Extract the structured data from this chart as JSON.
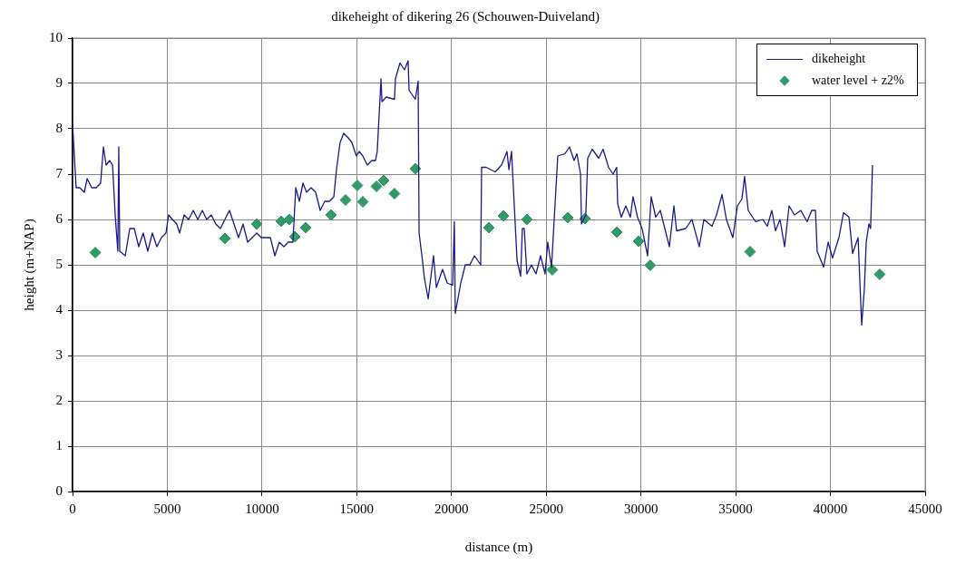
{
  "chart_data": {
    "type": "line",
    "title": "dikeheight of dikering 26 (Schouwen-Duiveland)",
    "xlabel": "distance (m)",
    "ylabel": "height (m+NAP)",
    "xlim": [
      0,
      45000
    ],
    "xticks": [
      0,
      5000,
      10000,
      15000,
      20000,
      25000,
      30000,
      35000,
      40000,
      45000
    ],
    "ylim": [
      0,
      10
    ],
    "yticks": [
      0,
      1,
      2,
      3,
      4,
      5,
      6,
      7,
      8,
      9,
      10
    ],
    "grid": true,
    "legend": "top right",
    "series": [
      {
        "name": "dikeheight",
        "type": "line",
        "color": "#1a1a8c",
        "marker": "none",
        "line_style": "solid",
        "x": [
          0,
          190,
          380,
          620,
          770,
          1010,
          1250,
          1480,
          1630,
          1770,
          1960,
          2110,
          2250,
          2390,
          2440,
          2490,
          2780,
          3020,
          3260,
          3490,
          3730,
          3970,
          4210,
          4450,
          4690,
          4930,
          5070,
          5270,
          5500,
          5650,
          5890,
          6130,
          6370,
          6610,
          6850,
          7080,
          7320,
          7560,
          7800,
          8040,
          8280,
          8520,
          8760,
          9000,
          9240,
          9480,
          9720,
          9960,
          10440,
          10680,
          10910,
          11150,
          11390,
          11630,
          11780,
          11970,
          12160,
          12350,
          12590,
          12830,
          13070,
          13310,
          13550,
          13790,
          13930,
          14120,
          14310,
          14550,
          14740,
          14980,
          15130,
          15320,
          15560,
          15800,
          15990,
          16080,
          16280,
          16330,
          16560,
          16990,
          17040,
          17280,
          17520,
          17710,
          17760,
          18090,
          18240,
          18290,
          18480,
          18570,
          18770,
          19050,
          19200,
          19530,
          19770,
          20060,
          20150,
          20200,
          20490,
          20730,
          20970,
          21210,
          21540,
          21590,
          21830,
          22310,
          22640,
          22930,
          23030,
          23170,
          23460,
          23650,
          23740,
          23840,
          23980,
          24220,
          24460,
          24700,
          24940,
          25080,
          25280,
          25610,
          25990,
          26230,
          26470,
          26620,
          26810,
          26860,
          27090,
          27190,
          27430,
          27770,
          28000,
          28290,
          28530,
          28720,
          28770,
          28960,
          29200,
          29440,
          29580,
          29820,
          30060,
          30350,
          30540,
          30780,
          31020,
          31260,
          31500,
          31740,
          31880,
          32360,
          32690,
          33080,
          33320,
          33750,
          33990,
          34280,
          34510,
          34850,
          35090,
          35330,
          35470,
          35660,
          36050,
          36430,
          36670,
          36910,
          37100,
          37340,
          37580,
          37820,
          38100,
          38440,
          38770,
          39010,
          39210,
          39300,
          39640,
          39880,
          40110,
          40450,
          40690,
          40980,
          41170,
          41460,
          41650,
          41790,
          41890,
          42030,
          42120,
          42220
        ],
        "values": [
          8.1,
          6.7,
          6.7,
          6.6,
          6.9,
          6.7,
          6.7,
          6.8,
          7.6,
          7.2,
          7.3,
          7.2,
          6.1,
          5.3,
          7.6,
          5.3,
          5.2,
          5.8,
          5.8,
          5.4,
          5.7,
          5.3,
          5.7,
          5.4,
          5.6,
          5.7,
          6.1,
          6.0,
          5.9,
          5.7,
          6.1,
          6.0,
          6.2,
          6.0,
          6.2,
          6.0,
          6.1,
          5.9,
          5.8,
          6.0,
          6.2,
          5.9,
          5.6,
          5.9,
          5.5,
          5.6,
          5.7,
          5.6,
          5.6,
          5.2,
          5.5,
          5.4,
          5.5,
          5.5,
          6.7,
          6.4,
          6.8,
          6.6,
          6.7,
          6.6,
          6.2,
          6.4,
          6.4,
          6.5,
          7.1,
          7.7,
          7.9,
          7.8,
          7.7,
          7.4,
          7.5,
          7.4,
          7.2,
          7.3,
          7.3,
          7.5,
          9.1,
          8.6,
          8.7,
          8.65,
          9.1,
          9.45,
          9.3,
          9.5,
          8.85,
          8.65,
          9.05,
          5.7,
          5.05,
          4.7,
          4.25,
          5.2,
          4.5,
          4.9,
          4.6,
          4.55,
          5.95,
          3.93,
          4.6,
          5.0,
          5.0,
          5.2,
          5.0,
          7.15,
          7.15,
          7.05,
          7.2,
          7.5,
          7.1,
          7.5,
          5.1,
          4.75,
          5.8,
          5.8,
          4.8,
          5.0,
          4.8,
          5.2,
          4.8,
          5.5,
          4.95,
          7.4,
          7.45,
          7.6,
          7.3,
          7.45,
          7.0,
          5.9,
          6.1,
          7.35,
          7.55,
          7.35,
          7.55,
          7.15,
          7.0,
          7.15,
          6.35,
          6.05,
          6.3,
          6.05,
          6.5,
          6.05,
          5.8,
          5.2,
          6.5,
          6.05,
          6.2,
          5.8,
          5.4,
          6.3,
          5.75,
          5.8,
          6.0,
          5.4,
          6.0,
          5.85,
          6.1,
          6.55,
          6.0,
          5.6,
          6.3,
          6.45,
          6.95,
          6.2,
          5.95,
          6.0,
          5.85,
          6.2,
          5.75,
          6.0,
          5.4,
          6.3,
          6.1,
          6.2,
          5.95,
          6.2,
          6.2,
          5.3,
          4.95,
          5.5,
          5.15,
          5.6,
          6.15,
          6.05,
          5.25,
          5.6,
          3.67,
          4.47,
          5.5,
          5.9,
          5.8,
          7.2
        ]
      },
      {
        "name": "water level + z2%",
        "type": "scatter",
        "color": "#339966",
        "marker": "diamond",
        "x": [
          1200,
          8040,
          9720,
          11010,
          11440,
          11730,
          12300,
          13640,
          14410,
          15030,
          15320,
          16040,
          16420,
          16990,
          18090,
          21970,
          22740,
          23980,
          25320,
          26140,
          27050,
          28720,
          29870,
          30490,
          35760,
          42600
        ],
        "values": [
          5.27,
          5.58,
          5.9,
          5.96,
          6.0,
          5.62,
          5.82,
          6.1,
          6.43,
          6.75,
          6.39,
          6.73,
          6.86,
          6.57,
          7.12,
          5.82,
          6.08,
          6.0,
          4.89,
          6.04,
          6.02,
          5.72,
          5.52,
          4.99,
          5.29,
          4.79
        ]
      }
    ]
  }
}
